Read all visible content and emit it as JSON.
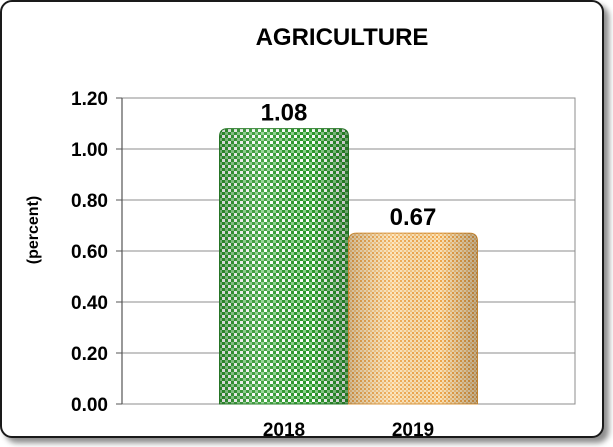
{
  "chart_data": {
    "type": "bar",
    "title": "AGRICULTURE",
    "xlabel": "",
    "ylabel": "(percent)",
    "categories": [
      "2018",
      "2019"
    ],
    "values": [
      1.08,
      0.67
    ],
    "data_labels": [
      "1.08",
      "0.67"
    ],
    "ylim": [
      0,
      1.2
    ],
    "yticks": [
      "0.00",
      "0.20",
      "0.40",
      "0.60",
      "0.80",
      "1.00",
      "1.20"
    ],
    "grid": "horizontal",
    "legend": "none",
    "colors": [
      "#3aa53a",
      "#f2b45a"
    ]
  }
}
